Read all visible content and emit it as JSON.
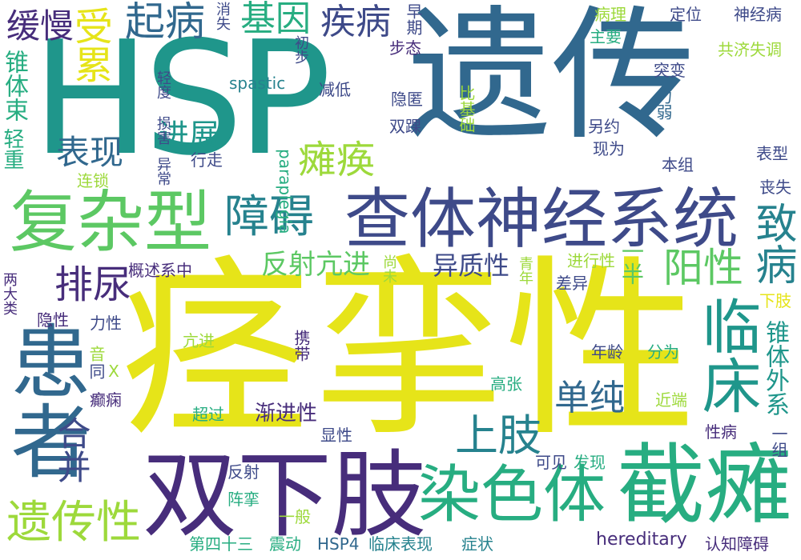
{
  "colors": {
    "background": "#ffffff",
    "yellow": "#e6e419",
    "light_green": "#9dd93b",
    "green": "#5cc863",
    "teal_green": "#27ad81",
    "teal": "#1f968b",
    "blue_teal": "#26828e",
    "blue": "#31688e",
    "dark_blue": "#3e4a89",
    "purple": "#472d7b",
    "dark_purple": "#440154"
  },
  "words": {
    "spasticity": "痉挛性",
    "genetic": "遗传",
    "hsp": "HSP",
    "lower_limbs": "双下肢",
    "pyramidal": "查体神经系统",
    "complex": "复杂型",
    "patient": "患者",
    "paraplegia_cn": "截瘫",
    "chromosome": "染色体",
    "clinical": "临床",
    "hereditary_cn": "遗传性",
    "onset": "起病",
    "gene": "基因",
    "disease": "疾病",
    "slow": "缓慢",
    "affected": "受累",
    "disorder": "障碍",
    "urination": "排尿",
    "manifest": "表现",
    "paralysis": "瘫痪",
    "progress": "进展",
    "reflex_hyper": "反射亢进",
    "heterogeneity": "异质性",
    "positive": "阳性",
    "pathogenic": "致病",
    "upper_limb": "上肢",
    "simple": "单纯",
    "combined": "合并",
    "pyramidal_tract": "锥体束",
    "mild": "轻重",
    "spastic": "spastic",
    "paraplegia": "paraplegia",
    "hereditary": "hereditary",
    "hsp4": "HSP4",
    "extra_pyramidal": "锥体外系",
    "half": "一半",
    "clinical_manifest": "临床表现",
    "cognitive": "认知障碍",
    "symptom": "症状",
    "forty_third": "第四十三",
    "tremor": "震动",
    "gait": "步态",
    "mutation": "突变",
    "ataxia": "共济失调",
    "pathology": "病理",
    "main": "主要",
    "localization": "定位",
    "neuropathy": "神经病",
    "early": "早期",
    "disappear": "消失",
    "preliminary": "初步",
    "degree": "轻度 损害",
    "reduce": "减低",
    "hidden": "隐匿",
    "bilateral": "双踝",
    "basis": "比基础",
    "weakness": "力弱",
    "another": "另约",
    "appear_as": "现为",
    "this_group": "本组",
    "phenotype": "表型",
    "loss": "丧失",
    "walking": "行走",
    "abnormal": "异常",
    "chain": "连锁",
    "overview": "概述系中",
    "not_yet": "尚未",
    "youth": "青年",
    "progressive": "进行性",
    "difference": "差异",
    "two_types": "两大类",
    "recessive": "隐性",
    "muscle_force": "力性",
    "hyper": "亢进",
    "carry": "携带",
    "age": "年龄",
    "divide": "分为",
    "same": "同",
    "tone": "音",
    "high_tension": "高张",
    "epilepsy": "癫痫",
    "x_chr": "X",
    "over": "超过",
    "gradual": "渐进性",
    "proximal": "近端",
    "dominant": "显性",
    "sex_disease": "性病",
    "group": "一组",
    "visible": "可见",
    "discover": "发现",
    "reflex": "反射",
    "clonus": "阵挛",
    "general": "一般",
    "lower_limb": "下肢"
  }
}
